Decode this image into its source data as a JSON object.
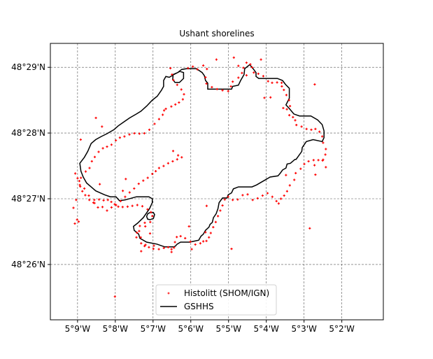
{
  "chart_data": {
    "type": "line",
    "title": "Ushant shorelines",
    "xlabel": "",
    "ylabel": "",
    "xlim": [
      -5.162,
      -5.015
    ],
    "ylim": [
      48.4193,
      48.4894
    ],
    "grid": true,
    "x_ticks": [
      {
        "value": -5.15,
        "label": "5°9'W"
      },
      {
        "value": -5.13333,
        "label": "5°8'W"
      },
      {
        "value": -5.11667,
        "label": "5°7'W"
      },
      {
        "value": -5.1,
        "label": "5°6'W"
      },
      {
        "value": -5.08333,
        "label": "5°5'W"
      },
      {
        "value": -5.06667,
        "label": "5°4'W"
      },
      {
        "value": -5.05,
        "label": "5°3'W"
      },
      {
        "value": -5.03333,
        "label": "5°2'W"
      }
    ],
    "y_ticks": [
      {
        "value": 48.48333,
        "label": "48°29'N"
      },
      {
        "value": 48.46667,
        "label": "48°28'N"
      },
      {
        "value": 48.45,
        "label": "48°27'N"
      },
      {
        "value": 48.43333,
        "label": "48°26'N"
      }
    ],
    "legend_position": "bottom-center",
    "series": [
      {
        "name": "Histolitt (SHOM/IGN)",
        "style": "points",
        "color": "#ff0000",
        "marker": "+",
        "x": [
          -5.1012,
          -5.0991,
          -5.0971,
          -5.0945,
          -5.0929,
          -5.0935,
          -5.0931,
          -5.0907,
          -5.0884,
          -5.086,
          -5.0835,
          -5.0823,
          -5.0815,
          -5.079,
          -5.0774,
          -5.0768,
          -5.0754,
          -5.0737,
          -5.0729,
          -5.0722,
          -5.0702,
          -5.068,
          -5.0659,
          -5.0641,
          -5.0619,
          -5.0599,
          -5.0589,
          -5.0578,
          -5.0566,
          -5.0562,
          -5.0576,
          -5.0565,
          -5.0549,
          -5.0539,
          -5.0534,
          -5.0511,
          -5.0489,
          -5.0468,
          -5.045,
          -5.0432,
          -5.042,
          -5.0416,
          -5.0404,
          -5.0406,
          -5.0416,
          -5.0437,
          -5.0458,
          -5.048,
          -5.0499,
          -5.0515,
          -5.0537,
          -5.0543,
          -5.0563,
          -5.0575,
          -5.0588,
          -5.0602,
          -5.0612,
          -5.0622,
          -5.064,
          -5.0661,
          -5.0683,
          -5.0705,
          -5.0727,
          -5.0749,
          -5.0771,
          -5.0793,
          -5.0815,
          -5.0835,
          -5.085,
          -5.086,
          -5.087,
          -5.088,
          -5.089,
          -5.0901,
          -5.0912,
          -5.092,
          -5.0931,
          -5.0945,
          -5.0958,
          -5.098,
          -5.1002,
          -5.1025,
          -5.1045,
          -5.1062,
          -5.107,
          -5.1074,
          -5.1085,
          -5.11,
          -5.1119,
          -5.1141,
          -5.1163,
          -5.1185,
          -5.1204,
          -5.1219,
          -5.1221,
          -5.1228,
          -5.1225,
          -5.1201,
          -5.1179,
          -5.117,
          -5.1176,
          -5.1191,
          -5.1214,
          -5.1236,
          -5.1258,
          -5.1279,
          -5.1301,
          -5.132,
          -5.1336,
          -5.1351,
          -5.1366,
          -5.1385,
          -5.1405,
          -5.1426,
          -5.1448,
          -5.1466,
          -5.1479,
          -5.1488,
          -5.1492,
          -5.1485,
          -5.1464,
          -5.1447,
          -5.1437,
          -5.1424,
          -5.1407,
          -5.1388,
          -5.137,
          -5.135,
          -5.1331,
          -5.1313,
          -5.1293,
          -5.1271,
          -5.1249,
          -5.1227,
          -5.1205,
          -5.1183,
          -5.116,
          -5.114,
          -5.1124,
          -5.1118,
          -5.111,
          -5.1086,
          -5.1068,
          -5.1052,
          -5.1035,
          -5.103,
          -5.1042,
          -5.106,
          -5.1077,
          -5.1083,
          -5.109,
          -5.1078,
          -5.1056,
          -5.104,
          -5.106,
          -5.108,
          -5.11,
          -5.112,
          -5.114,
          -5.1155,
          -5.117,
          -5.119,
          -5.121,
          -5.123,
          -5.125,
          -5.127,
          -5.129,
          -5.131,
          -5.133,
          -5.135,
          -5.137,
          -5.139,
          -5.141,
          -5.143,
          -5.145,
          -5.147,
          -5.149,
          -5.15,
          -5.151,
          -5.1502,
          -5.1512,
          -5.1495,
          -5.12,
          -5.1203,
          -5.1008,
          -5.0996,
          -5.093,
          -5.0887,
          -5.081,
          -5.079,
          -5.0754,
          -5.069,
          -5.0675,
          -5.0648,
          -5.0598,
          -5.0453,
          -5.0418,
          -5.0404,
          -5.045,
          -5.0454,
          -5.0592,
          -5.058,
          -5.0475,
          -5.082,
          -5.0935,
          -5.1085,
          -5.1165,
          -5.1219,
          -5.1238,
          -5.118,
          -5.124,
          -5.1287,
          -5.13,
          -5.1425,
          -5.1392,
          -5.1486,
          -5.1419,
          -5.1506,
          -5.1518,
          -5.1402,
          -5.1335
        ],
        "y": [
          48.4831,
          48.4835,
          48.4828,
          48.4838,
          48.4829,
          48.4808,
          48.4792,
          48.4783,
          48.4778,
          48.4775,
          48.4773,
          48.4785,
          48.4797,
          48.4807,
          48.4819,
          48.4832,
          48.4845,
          48.4841,
          48.4833,
          48.482,
          48.4817,
          48.4811,
          48.4798,
          48.4794,
          48.4795,
          48.4794,
          48.4776,
          48.4763,
          48.475,
          48.4735,
          48.4727,
          48.4712,
          48.4707,
          48.4699,
          48.4687,
          48.4683,
          48.4677,
          48.4675,
          48.4677,
          48.467,
          48.4658,
          48.4642,
          48.4626,
          48.4612,
          48.4599,
          48.4598,
          48.4598,
          48.4595,
          48.4588,
          48.4576,
          48.4565,
          48.4548,
          48.4534,
          48.4519,
          48.4508,
          48.45,
          48.4488,
          48.4494,
          48.4505,
          48.4514,
          48.4508,
          48.4501,
          48.4497,
          48.4511,
          48.4509,
          48.4498,
          48.4497,
          48.4505,
          48.4498,
          48.4483,
          48.447,
          48.4456,
          48.4441,
          48.4428,
          48.4413,
          48.4402,
          48.4393,
          48.4392,
          48.4387,
          48.4384,
          48.4391,
          48.44,
          48.4405,
          48.4403,
          48.439,
          48.4376,
          48.4372,
          48.4377,
          48.4375,
          48.4372,
          48.4381,
          48.4377,
          48.438,
          48.4387,
          48.4402,
          48.4418,
          48.4431,
          48.443,
          48.4441,
          48.4456,
          48.4466,
          48.4473,
          48.4481,
          48.4484,
          48.4482,
          48.448,
          48.4479,
          48.448,
          48.4486,
          48.4492,
          48.4497,
          48.4496,
          48.4498,
          48.4497,
          48.4497,
          48.4509,
          48.4519,
          48.4531,
          48.4545,
          48.4553,
          48.4569,
          48.4578,
          48.4595,
          48.4606,
          48.4619,
          48.4628,
          48.4632,
          48.4637,
          48.4648,
          48.4655,
          48.4658,
          48.4663,
          48.4666,
          48.4665,
          48.4666,
          48.4675,
          48.469,
          48.4702,
          48.4713,
          48.4724,
          48.4728,
          48.4734,
          48.4739,
          48.4744,
          48.4752,
          48.4765,
          48.4777,
          48.4789,
          48.4801,
          48.4815,
          48.4831,
          48.4621,
          48.461,
          48.4605,
          48.46,
          48.4595,
          48.459,
          48.4583,
          48.4578,
          48.457,
          48.4563,
          48.4553,
          48.4546,
          48.4538,
          48.4526,
          48.4516,
          48.4505,
          48.4494,
          48.4484,
          48.4478,
          48.447,
          48.4479,
          48.4478,
          48.449,
          48.4508,
          48.4526,
          48.4535,
          48.4552,
          48.4564,
          48.4447,
          48.4437,
          48.4442,
          48.4383,
          48.4439,
          48.443,
          48.4372,
          48.4482,
          48.4853,
          48.4858,
          48.4837,
          48.4813,
          48.4853,
          48.4756,
          48.4757,
          48.4785,
          48.479,
          48.4597,
          48.458,
          48.4561,
          48.4585,
          48.473,
          48.456,
          48.4425,
          48.4373,
          48.4415,
          48.4365,
          48.4373,
          48.4367,
          48.4414,
          48.4412,
          48.4402,
          48.455,
          48.452,
          48.4489,
          48.4683,
          48.465,
          48.4705,
          48.4497,
          48.4477,
          48.4537,
          48.4252
        ]
      },
      {
        "name": "GSHHS",
        "style": "line",
        "color": "#000000",
        "x": [
          -5.1018,
          -5.0975,
          -5.095,
          -5.094,
          -5.0935,
          -5.0925,
          -5.0925,
          -5.0925,
          -5.0875,
          -5.082,
          -5.0815,
          -5.079,
          -5.078,
          -5.0765,
          -5.0762,
          -5.074,
          -5.0725,
          -5.0712,
          -5.0712,
          -5.07,
          -5.066,
          -5.0618,
          -5.0595,
          -5.0582,
          -5.0565,
          -5.0565,
          -5.058,
          -5.0567,
          -5.0545,
          -5.052,
          -5.047,
          -5.044,
          -5.042,
          -5.0412,
          -5.0412,
          -5.042,
          -5.046,
          -5.049,
          -5.0508,
          -5.051,
          -5.0535,
          -5.054,
          -5.056,
          -5.0575,
          -5.058,
          -5.0595,
          -5.0605,
          -5.0615,
          -5.065,
          -5.068,
          -5.071,
          -5.073,
          -5.079,
          -5.0812,
          -5.082,
          -5.0835,
          -5.084,
          -5.086,
          -5.0875,
          -5.088,
          -5.0888,
          -5.09,
          -5.0905,
          -5.0915,
          -5.092,
          -5.0935,
          -5.0945,
          -5.0955,
          -5.0965,
          -5.1005,
          -5.1045,
          -5.106,
          -5.1068,
          -5.1075,
          -5.109,
          -5.1115,
          -5.115,
          -5.1195,
          -5.1225,
          -5.123,
          -5.125,
          -5.1253,
          -5.1235,
          -5.121,
          -5.1182,
          -5.117,
          -5.117,
          -5.1185,
          -5.124,
          -5.129,
          -5.1315,
          -5.133,
          -5.1355,
          -5.138,
          -5.142,
          -5.144,
          -5.146,
          -5.1475,
          -5.1485,
          -5.149,
          -5.147,
          -5.1455,
          -5.144,
          -5.142,
          -5.1395,
          -5.137,
          -5.134,
          -5.132,
          -5.1295,
          -5.127,
          -5.124,
          -5.122,
          -5.1195,
          -5.117,
          -5.1148,
          -5.113,
          -5.112,
          -5.112,
          -5.111,
          -5.1095,
          -5.1075,
          -5.1048,
          -5.1032,
          -5.1032,
          -5.105,
          -5.107,
          -5.108,
          -5.1078,
          -5.1058,
          -5.104,
          -5.1018
        ],
        "y": [
          48.483,
          48.483,
          48.482,
          48.4812,
          48.48,
          48.4793,
          48.4785,
          48.4778,
          48.4778,
          48.4778,
          48.4785,
          48.4788,
          48.48,
          48.4815,
          48.483,
          48.484,
          48.483,
          48.482,
          48.481,
          48.4805,
          48.4805,
          48.4805,
          48.48,
          48.479,
          48.478,
          48.4755,
          48.4738,
          48.473,
          48.4715,
          48.471,
          48.471,
          48.47,
          48.4688,
          48.4672,
          48.4655,
          48.4645,
          48.465,
          48.4645,
          48.463,
          48.462,
          48.46,
          48.46,
          48.459,
          48.4588,
          48.4578,
          48.4573,
          48.4565,
          48.4558,
          48.4555,
          48.4545,
          48.4535,
          48.453,
          48.453,
          48.4525,
          48.4515,
          48.451,
          48.4502,
          48.4502,
          48.449,
          48.4475,
          48.4462,
          48.4452,
          48.444,
          48.4435,
          48.4428,
          48.442,
          48.441,
          48.4405,
          48.4395,
          48.439,
          48.439,
          48.4385,
          48.438,
          48.4378,
          48.4378,
          48.4378,
          48.4385,
          48.439,
          48.44,
          48.441,
          48.442,
          48.443,
          48.4438,
          48.4452,
          48.4475,
          48.449,
          48.45,
          48.4505,
          48.4505,
          48.4497,
          48.4495,
          48.4505,
          48.4505,
          48.451,
          48.452,
          48.453,
          48.454,
          48.4555,
          48.457,
          48.459,
          48.4605,
          48.462,
          48.464,
          48.465,
          48.4658,
          48.4665,
          48.4675,
          48.4685,
          48.4695,
          48.4705,
          48.4715,
          48.4722,
          48.4735,
          48.475,
          48.476,
          48.4775,
          48.4785,
          48.48,
          48.481,
          48.4808,
          48.4815,
          48.4823,
          48.482,
          48.4805,
          48.4795,
          48.4795,
          48.4803,
          48.4815,
          48.482,
          48.4828,
          48.483
        ]
      },
      {
        "name": "",
        "style": "line",
        "color": "#000000",
        "x": [
          -5.118,
          -5.1165,
          -5.116,
          -5.1165,
          -5.118,
          -5.119,
          -5.1195,
          -5.119,
          -5.118
        ],
        "y": [
          48.4465,
          48.4465,
          48.446,
          48.445,
          48.4447,
          48.4448,
          48.4455,
          48.4462,
          48.4465
        ]
      }
    ]
  }
}
